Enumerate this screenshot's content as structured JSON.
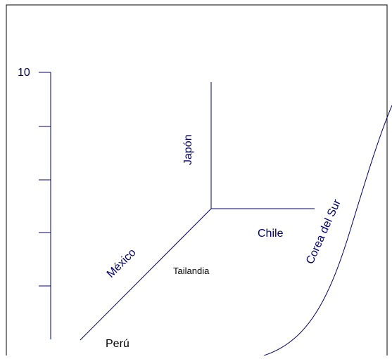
{
  "colors": {
    "ink": "#000066",
    "black": "#000000",
    "frame": "#000000"
  },
  "scale": {
    "label_top": "10",
    "ticks_count": 5
  },
  "labels": {
    "japan": "Japón",
    "chile": "Chile",
    "mexico": "México",
    "thailand": "Tailandia",
    "peru": "Perú",
    "korea": "Corea del Sur"
  }
}
